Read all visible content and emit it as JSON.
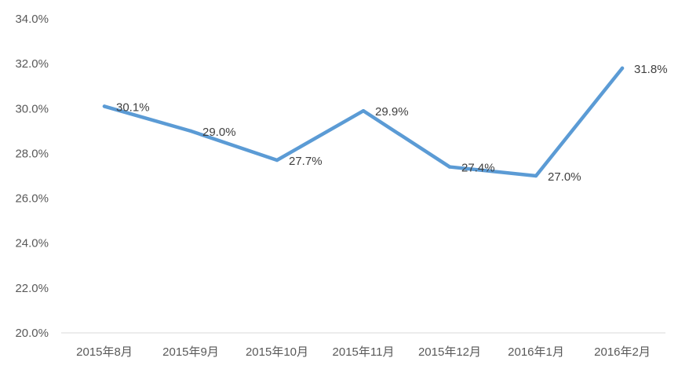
{
  "chart_data": {
    "type": "line",
    "title": "",
    "xlabel": "",
    "ylabel": "",
    "categories": [
      "2015年8月",
      "2015年9月",
      "2015年10月",
      "2015年11月",
      "2015年12月",
      "2016年1月",
      "2016年2月"
    ],
    "series": [
      {
        "values": [
          30.1,
          29.0,
          27.7,
          29.9,
          27.4,
          27.0,
          31.8
        ],
        "labels": [
          "30.1%",
          "29.0%",
          "27.7%",
          "29.9%",
          "27.4%",
          "27.0%",
          "31.8%"
        ],
        "color": "#5b9bd5"
      }
    ],
    "ylim": [
      20,
      34
    ],
    "yticks": [
      20,
      22,
      24,
      26,
      28,
      30,
      32,
      34
    ],
    "ytick_labels": [
      "20.0%",
      "22.0%",
      "24.0%",
      "26.0%",
      "28.0%",
      "30.0%",
      "32.0%",
      "34.0%"
    ],
    "grid": false,
    "legend": "none"
  }
}
